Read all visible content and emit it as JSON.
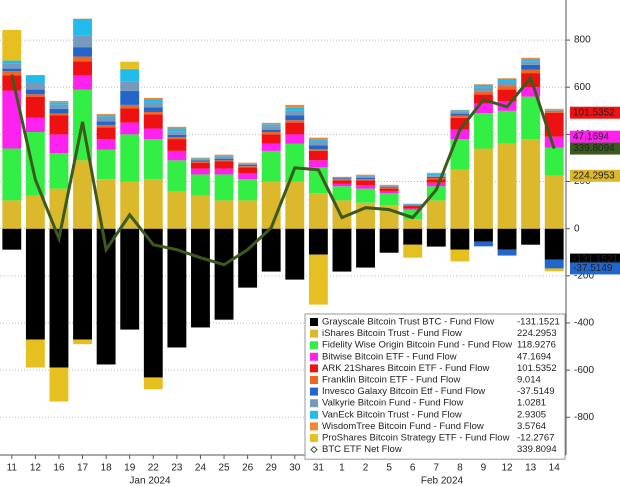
{
  "chart_data": {
    "type": "bar",
    "stacked": true,
    "categories": [
      "11",
      "12",
      "16",
      "17",
      "18",
      "19",
      "22",
      "23",
      "24",
      "25",
      "26",
      "29",
      "30",
      "31",
      "1",
      "2",
      "5",
      "6",
      "7",
      "8",
      "9",
      "12",
      "13",
      "14"
    ],
    "x_group_labels": [
      "Jan 2024",
      "Feb 2024"
    ],
    "ylim": [
      -960,
      970
    ],
    "yticks": [
      -800,
      -600,
      -400,
      -200,
      0,
      200,
      400,
      600,
      800
    ],
    "grid": true,
    "series": [
      {
        "name": "Grayscale Bitcoin Trust BTC - Fund Flow",
        "color": "#000000",
        "values": [
          -89,
          -470,
          -589,
          -470,
          -576,
          -428,
          -631,
          -504,
          -419,
          -386,
          -250,
          -182,
          -216,
          -110,
          -182,
          -165,
          -102,
          -68,
          -76,
          -89,
          -55,
          -89,
          -68,
          -131.1521
        ]
      },
      {
        "name": "iShares Bitcoin Trust - Fund Flow",
        "color": "#dcb82c",
        "values": [
          120,
          140,
          170,
          290,
          210,
          200,
          210,
          160,
          140,
          120,
          120,
          200,
          200,
          150,
          120,
          110,
          100,
          40,
          120,
          250,
          340,
          360,
          380,
          224.2953
        ]
      },
      {
        "name": "Fidelity Wise Origin Bitcoin Fund - Fund Flow",
        "color": "#33ee44",
        "values": [
          220,
          270,
          150,
          300,
          125,
          200,
          170,
          130,
          90,
          110,
          90,
          130,
          160,
          110,
          60,
          60,
          50,
          40,
          60,
          130,
          150,
          140,
          180,
          118.9276
        ]
      },
      {
        "name": "Bitwise Bitcoin ETF - Fund Flow",
        "color": "#ff22ee",
        "values": [
          246,
          60,
          80,
          60,
          45,
          50,
          45,
          40,
          25,
          25,
          25,
          30,
          40,
          30,
          10,
          15,
          10,
          6,
          15,
          40,
          40,
          40,
          40,
          47.1694
        ]
      },
      {
        "name": "ARK 21Shares Bitcoin ETF - Fund Flow",
        "color": "#ee1111",
        "values": [
          65,
          90,
          80,
          60,
          50,
          60,
          60,
          50,
          25,
          30,
          25,
          40,
          50,
          40,
          15,
          20,
          10,
          10,
          15,
          50,
          40,
          50,
          60,
          101.5352
        ]
      },
      {
        "name": "Franklin Bitcoin ETF - Fund Flow",
        "color": "#ee6622",
        "values": [
          17,
          10,
          8,
          20,
          10,
          15,
          10,
          8,
          5,
          5,
          5,
          10,
          10,
          8,
          5,
          5,
          4,
          2,
          5,
          10,
          10,
          15,
          15,
          9.014
        ]
      },
      {
        "name": "Invesco Galaxy Bitcoin Etf - Fund Flow",
        "color": "#2266cc",
        "values": [
          11,
          20,
          20,
          40,
          15,
          60,
          20,
          10,
          5,
          7,
          5,
          10,
          20,
          15,
          3,
          5,
          3,
          2,
          5,
          8,
          -20,
          -25,
          20,
          -37.5149
        ]
      },
      {
        "name": "Valkyrie Bitcoin Fund - Fund Flow",
        "color": "#7799bb",
        "values": [
          23,
          30,
          18,
          50,
          20,
          40,
          20,
          15,
          5,
          10,
          5,
          15,
          20,
          15,
          4,
          8,
          4,
          3,
          7,
          10,
          20,
          15,
          15,
          1.0281
        ]
      },
      {
        "name": "VanEck Bitcoin Trust - Fund Flow",
        "color": "#22bbee",
        "values": [
          11,
          30,
          10,
          70,
          8,
          50,
          15,
          12,
          3,
          4,
          3,
          8,
          15,
          10,
          2,
          4,
          3,
          2,
          6,
          4,
          10,
          15,
          10,
          2.9305
        ]
      },
      {
        "name": "WisdomTree Bitcoin Fund - Fund Flow",
        "color": "#ee8833",
        "values": [
          0,
          2,
          6,
          1,
          4,
          3,
          5,
          7,
          3,
          3,
          2,
          6,
          10,
          8,
          1,
          2,
          2,
          1,
          4,
          2,
          3,
          3,
          5,
          3.5764
        ]
      },
      {
        "name": "ProShares Bitcoin Strategy ETF - Fund Flow",
        "color": "#e6c020",
        "values": [
          130,
          -119,
          -144,
          -20,
          0,
          30,
          -50,
          0,
          0,
          0,
          0,
          0,
          0,
          -212,
          0,
          0,
          0,
          -55,
          0,
          -50,
          0,
          0,
          0,
          -12.2767
        ]
      },
      {
        "name": "BTC ETF Net Flow",
        "type": "line",
        "color": "#3c5a1e",
        "values": [
          653,
          208,
          -42,
          453,
          -89,
          59,
          -68,
          -89,
          -123,
          -153,
          -89,
          4,
          258,
          250,
          47,
          89,
          81,
          47,
          165,
          419,
          547,
          517,
          640,
          339.8094
        ]
      }
    ]
  }
}
